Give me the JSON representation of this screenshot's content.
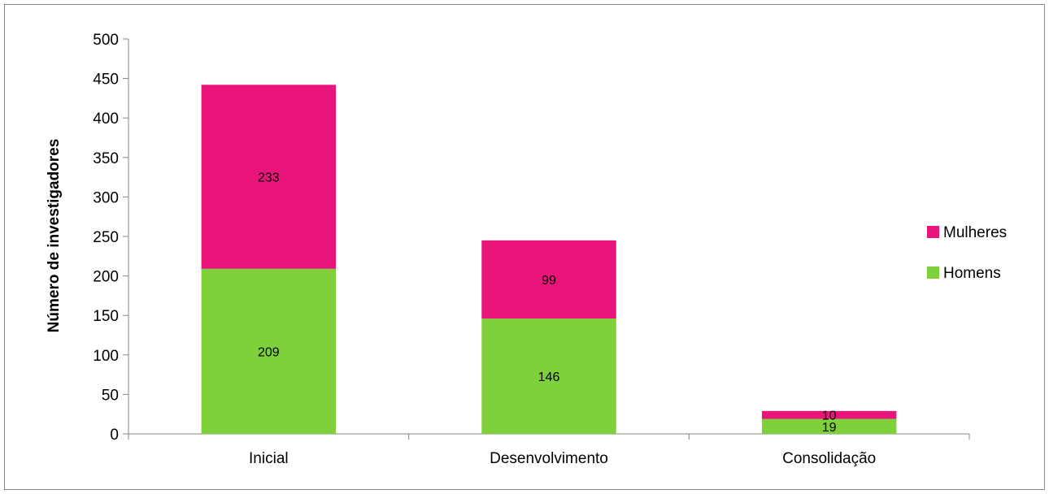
{
  "chart_data": {
    "type": "bar",
    "stacked": true,
    "title": "",
    "xlabel": "",
    "ylabel": "Número de investigadores",
    "categories": [
      "Inicial",
      "Desenvolvimento",
      "Consolidação"
    ],
    "series": [
      {
        "name": "Homens",
        "values": [
          209,
          146,
          19
        ],
        "color": "#7FD13B"
      },
      {
        "name": "Mulheres",
        "values": [
          233,
          99,
          10
        ],
        "color": "#EA157A"
      }
    ],
    "ylim": [
      0,
      500
    ],
    "yticks": [
      0,
      50,
      100,
      150,
      200,
      250,
      300,
      350,
      400,
      450,
      500
    ],
    "grid": false,
    "legend": {
      "position": "right",
      "order": [
        "Mulheres",
        "Homens"
      ]
    }
  }
}
